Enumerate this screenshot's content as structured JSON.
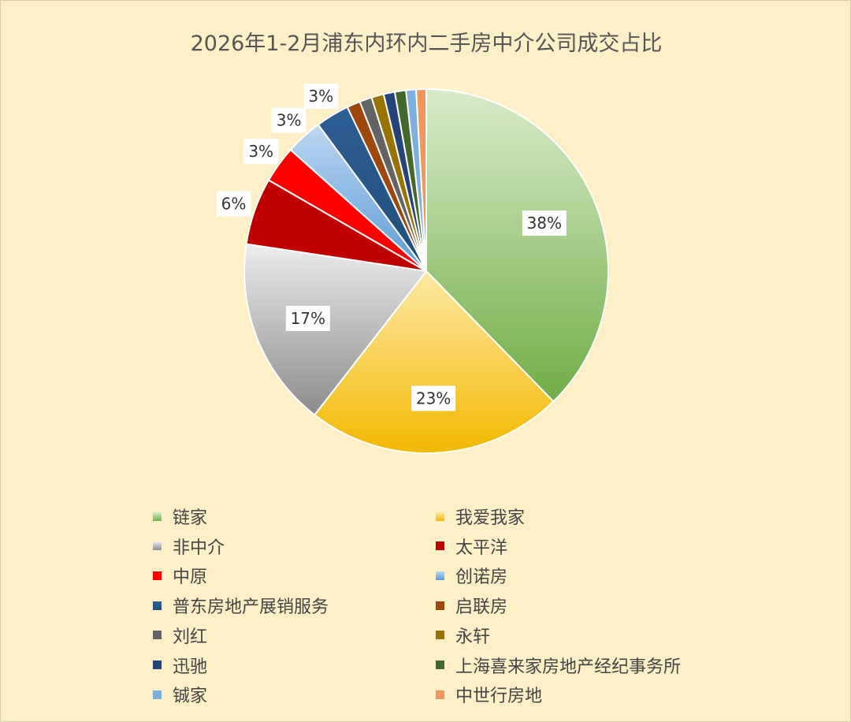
{
  "chart_data": {
    "type": "pie",
    "title": "2026年1-2月浦东内环内二手房中介公司成交占比",
    "legend_position": "bottom",
    "slices": [
      {
        "name": "链家",
        "value": 38,
        "label": "38%",
        "color": "#70ad47",
        "light": "#d9ecc9"
      },
      {
        "name": "我爱我家",
        "value": 23,
        "label": "23%",
        "color": "#f2b800",
        "light": "#fde9a6"
      },
      {
        "name": "非中介",
        "value": 17,
        "label": "17%",
        "color": "#8c8c8c",
        "light": "#ececec"
      },
      {
        "name": "太平洋",
        "value": 6,
        "label": "6%",
        "color": "#c00000",
        "light": "#c00000"
      },
      {
        "name": "中原",
        "value": 3.3,
        "label": "3%",
        "color": "#ff0000",
        "light": "#ff0000"
      },
      {
        "name": "创诺房",
        "value": 3.3,
        "label": "3%",
        "color": "#5b9bd5",
        "light": "#bcd7f1"
      },
      {
        "name": "普东房地产展销服务",
        "value": 3,
        "label": "3%",
        "color": "#1f4e79",
        "light": "#2e5f93"
      },
      {
        "name": "启联房",
        "value": 1.2,
        "label": "",
        "color": "#9e480e",
        "light": "#9e480e"
      },
      {
        "name": "刘红",
        "value": 1.1,
        "label": "",
        "color": "#636363",
        "light": "#636363"
      },
      {
        "name": "永轩",
        "value": 1.1,
        "label": "",
        "color": "#997300",
        "light": "#997300"
      },
      {
        "name": "迅驰",
        "value": 1.0,
        "label": "",
        "color": "#264478",
        "light": "#264478"
      },
      {
        "name": "上海喜来家房地产经纪事务所",
        "value": 1.0,
        "label": "",
        "color": "#43682b",
        "light": "#43682b"
      },
      {
        "name": "铖家",
        "value": 0.9,
        "label": "",
        "color": "#7cafdd",
        "light": "#7cafdd"
      },
      {
        "name": "中世行房地",
        "value": 0.9,
        "label": "",
        "color": "#f1975a",
        "light": "#f1975a"
      }
    ]
  }
}
